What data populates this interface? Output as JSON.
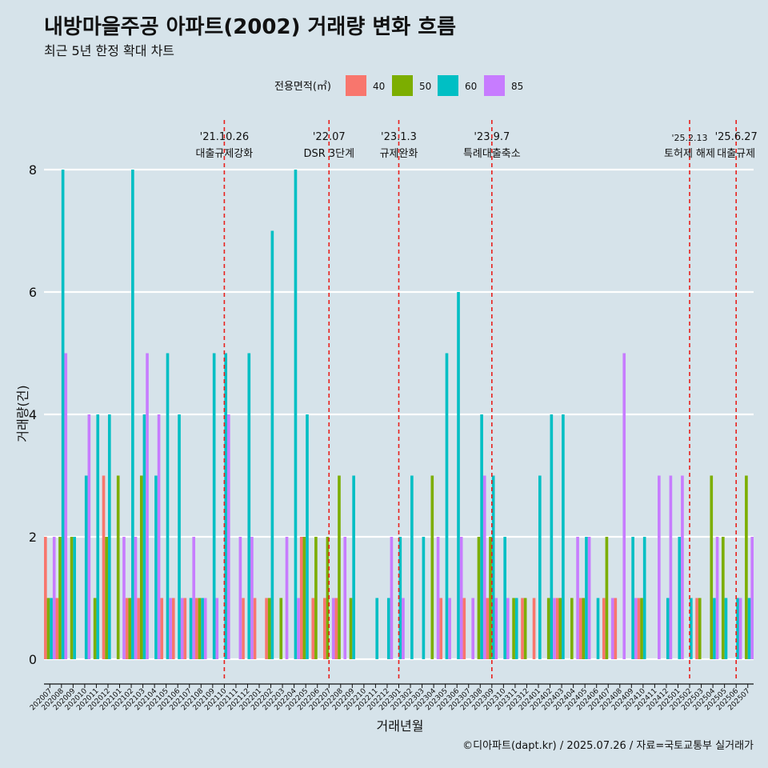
{
  "chart_data": {
    "type": "bar",
    "title": "내방마을주공 아파트(2002) 거래량 변화 흐름",
    "subtitle": "최근 5년 한정 확대 차트",
    "xlabel": "거래년월",
    "ylabel": "거래량(건)",
    "caption": "©디아파트(dapt.kr) / 2025.07.26 / 자료=국토교통부 실거래가",
    "legend_title": "전용면적(㎡)",
    "legend_position": "top",
    "ylim": [
      -0.35,
      8.6
    ],
    "yticks": [
      0,
      2,
      4,
      6,
      8
    ],
    "grid": true,
    "categories": [
      "202007",
      "202008",
      "202009",
      "202010",
      "202011",
      "202012",
      "202101",
      "202102",
      "202103",
      "202104",
      "202105",
      "202106",
      "202107",
      "202108",
      "202109",
      "202110",
      "202111",
      "202112",
      "202201",
      "202202",
      "202203",
      "202204",
      "202205",
      "202206",
      "202207",
      "202208",
      "202209",
      "202210",
      "202211",
      "202212",
      "202301",
      "202302",
      "202303",
      "202304",
      "202305",
      "202306",
      "202307",
      "202308",
      "202309",
      "202310",
      "202311",
      "202312",
      "202401",
      "202402",
      "202403",
      "202404",
      "202405",
      "202406",
      "202407",
      "202408",
      "202409",
      "202410",
      "202411",
      "202412",
      "202501",
      "202502",
      "202503",
      "202504",
      "202505",
      "202506",
      "202507"
    ],
    "series": [
      {
        "name": "40",
        "color": "#f8766d",
        "values": [
          2,
          1,
          0,
          0,
          0,
          3,
          0,
          1,
          1,
          0,
          1,
          1,
          1,
          1,
          0,
          0,
          0,
          1,
          1,
          1,
          0,
          0,
          2,
          1,
          1,
          1,
          0,
          0,
          0,
          0,
          0,
          0,
          0,
          0,
          1,
          0,
          1,
          0,
          1,
          0,
          0,
          1,
          1,
          0,
          1,
          0,
          1,
          0,
          1,
          1,
          0,
          1,
          0,
          0,
          0,
          0,
          1,
          0,
          0,
          0,
          0
        ]
      },
      {
        "name": "50",
        "color": "#7cae00",
        "values": [
          1,
          2,
          2,
          0,
          1,
          2,
          3,
          1,
          3,
          0,
          0,
          0,
          0,
          1,
          0,
          0,
          0,
          0,
          0,
          1,
          1,
          0,
          2,
          2,
          2,
          3,
          1,
          0,
          0,
          0,
          0,
          0,
          0,
          3,
          0,
          0,
          0,
          2,
          2,
          0,
          1,
          1,
          0,
          1,
          1,
          1,
          1,
          0,
          2,
          0,
          0,
          1,
          0,
          0,
          0,
          0,
          1,
          3,
          2,
          0,
          3
        ]
      },
      {
        "name": "60",
        "color": "#00bfc4",
        "values": [
          1,
          8,
          2,
          3,
          4,
          4,
          0,
          8,
          4,
          3,
          5,
          4,
          1,
          1,
          5,
          5,
          0,
          5,
          0,
          7,
          0,
          8,
          4,
          0,
          0,
          0,
          3,
          0,
          1,
          1,
          2,
          3,
          2,
          0,
          5,
          6,
          0,
          4,
          3,
          2,
          1,
          0,
          3,
          4,
          4,
          0,
          2,
          1,
          0,
          0,
          2,
          2,
          0,
          1,
          2,
          1,
          0,
          1,
          1,
          1,
          1
        ]
      },
      {
        "name": "85",
        "color": "#c77cff",
        "values": [
          2,
          5,
          0,
          4,
          0,
          0,
          2,
          2,
          5,
          4,
          1,
          1,
          2,
          1,
          1,
          4,
          2,
          2,
          0,
          0,
          2,
          1,
          0,
          0,
          1,
          2,
          0,
          0,
          0,
          2,
          1,
          0,
          0,
          2,
          1,
          2,
          1,
          3,
          1,
          1,
          0,
          0,
          0,
          1,
          0,
          2,
          2,
          0,
          1,
          5,
          1,
          0,
          3,
          3,
          3,
          0,
          0,
          2,
          0,
          1,
          2
        ]
      }
    ],
    "events": [
      {
        "date": "'21.10.26",
        "label": "대출규제강화",
        "category": "202110"
      },
      {
        "date": "'22.07",
        "label": "DSR 3단계",
        "category": "202207"
      },
      {
        "date": "'23.1.3",
        "label": "규제완화",
        "category": "202301"
      },
      {
        "date": "'23.9.7",
        "label": "특례대출축소",
        "category": "202309"
      },
      {
        "date": "'25.2.13",
        "label": "토허제 해제",
        "category": "202502"
      },
      {
        "date": "'25.6.27",
        "label": "대출규제",
        "category": "202506"
      }
    ]
  }
}
